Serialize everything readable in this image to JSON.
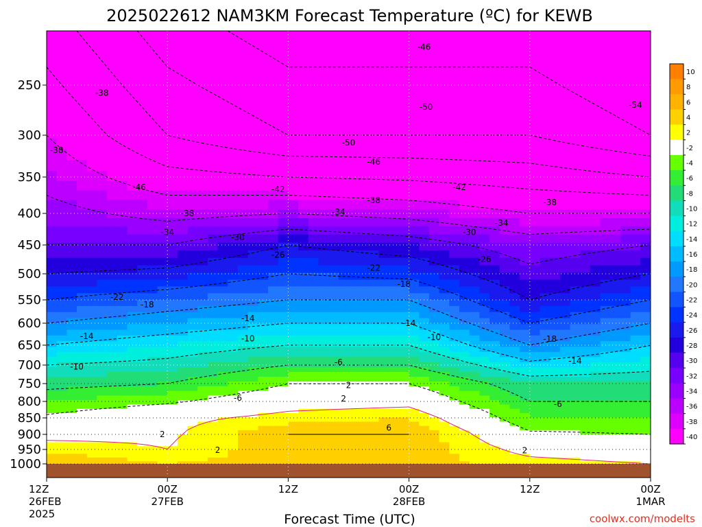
{
  "chart_data": {
    "type": "heatmap",
    "title": "2025022612 NAM3KM Forecast Temperature (ºC) for KEWB",
    "xlabel": "Forecast Time (UTC)",
    "ylabel": "",
    "x_tick_labels": [
      [
        "12Z",
        "26FEB",
        "2025"
      ],
      [
        "00Z",
        "27FEB"
      ],
      [
        "12Z"
      ],
      [
        "00Z",
        "28FEB"
      ],
      [
        "12Z"
      ],
      [
        "00Z",
        "1MAR"
      ]
    ],
    "x_tick_hours": [
      0,
      12,
      24,
      36,
      48,
      60
    ],
    "x_range_hours": [
      0,
      60
    ],
    "y_axis": "pressure (hPa), reversed, log-like",
    "y_ticks": [
      250,
      300,
      350,
      400,
      450,
      500,
      550,
      600,
      650,
      700,
      750,
      800,
      850,
      900,
      950,
      1000
    ],
    "y_range": [
      200,
      1000
    ],
    "grid": true,
    "legend_position": "right",
    "colorbar": {
      "labels": [
        "10",
        "8",
        "6",
        "4",
        "2",
        "-2",
        "-4",
        "-6",
        "-8",
        "-10",
        "-12",
        "-14",
        "-16",
        "-18",
        "-20",
        "-22",
        "-24",
        "-26",
        "-28",
        "-30",
        "-32",
        "-34",
        "-36",
        "-38",
        "-40"
      ],
      "colors": [
        "#ff8000",
        "#ff9a00",
        "#ffb300",
        "#ffd000",
        "#ffff00",
        "#ffffff",
        "#66ff00",
        "#33ee33",
        "#22dd77",
        "#11ddbb",
        "#00eedd",
        "#00ddff",
        "#00bbff",
        "#0099ff",
        "#2277ff",
        "#1155ff",
        "#0033ff",
        "#1a1aee",
        "#2200dd",
        "#5500ee",
        "#7700ff",
        "#9900ff",
        "#bb00ff",
        "#dd00ff",
        "#ff00ff"
      ]
    },
    "approx_profiles": [
      {
        "hour": 0,
        "levels": [
          {
            "p": 300,
            "t": -38
          },
          {
            "p": 450,
            "t": -30
          },
          {
            "p": 550,
            "t": -22
          },
          {
            "p": 650,
            "t": -14
          },
          {
            "p": 700,
            "t": -10
          },
          {
            "p": 800,
            "t": -4
          },
          {
            "p": 900,
            "t": 1
          },
          {
            "p": 1000,
            "t": 6
          }
        ]
      },
      {
        "hour": 12,
        "levels": [
          {
            "p": 300,
            "t": -46
          },
          {
            "p": 450,
            "t": -30
          },
          {
            "p": 550,
            "t": -20
          },
          {
            "p": 650,
            "t": -12
          },
          {
            "p": 750,
            "t": -6
          },
          {
            "p": 850,
            "t": 1
          },
          {
            "p": 950,
            "t": 2
          },
          {
            "p": 1000,
            "t": 4
          }
        ]
      },
      {
        "hour": 24,
        "levels": [
          {
            "p": 300,
            "t": -50
          },
          {
            "p": 450,
            "t": -26
          },
          {
            "p": 550,
            "t": -18
          },
          {
            "p": 650,
            "t": -10
          },
          {
            "p": 750,
            "t": -2
          },
          {
            "p": 850,
            "t": 3
          },
          {
            "p": 900,
            "t": 6
          },
          {
            "p": 1000,
            "t": 5
          }
        ]
      },
      {
        "hour": 36,
        "levels": [
          {
            "p": 300,
            "t": -50
          },
          {
            "p": 450,
            "t": -28
          },
          {
            "p": 550,
            "t": -18
          },
          {
            "p": 650,
            "t": -10
          },
          {
            "p": 750,
            "t": -2
          },
          {
            "p": 850,
            "t": 4
          },
          {
            "p": 900,
            "t": 6
          },
          {
            "p": 1000,
            "t": 5
          }
        ]
      },
      {
        "hour": 48,
        "levels": [
          {
            "p": 300,
            "t": -50
          },
          {
            "p": 450,
            "t": -32
          },
          {
            "p": 550,
            "t": -26
          },
          {
            "p": 650,
            "t": -18
          },
          {
            "p": 750,
            "t": -8
          },
          {
            "p": 850,
            "t": -4
          },
          {
            "p": 950,
            "t": 1
          },
          {
            "p": 1000,
            "t": 3
          }
        ]
      },
      {
        "hour": 60,
        "levels": [
          {
            "p": 300,
            "t": -54
          },
          {
            "p": 450,
            "t": -30
          },
          {
            "p": 550,
            "t": -22
          },
          {
            "p": 650,
            "t": -14
          },
          {
            "p": 750,
            "t": -8
          },
          {
            "p": 850,
            "t": -4
          },
          {
            "p": 950,
            "t": 0
          },
          {
            "p": 1000,
            "t": 2
          }
        ]
      }
    ],
    "contour_labels": [
      {
        "text": "-46",
        "hour": 37.5,
        "p": 215
      },
      {
        "text": "-38",
        "hour": 5.5,
        "p": 258
      },
      {
        "text": "-50",
        "hour": 37.7,
        "p": 272
      },
      {
        "text": "-54",
        "hour": 58.5,
        "p": 270
      },
      {
        "text": "-38",
        "hour": 1.0,
        "p": 318
      },
      {
        "text": "-50",
        "hour": 30.0,
        "p": 309
      },
      {
        "text": "-46",
        "hour": 32.5,
        "p": 332
      },
      {
        "text": "-46",
        "hour": 9.2,
        "p": 364
      },
      {
        "text": "-42",
        "hour": 23.0,
        "p": 367
      },
      {
        "text": "-42",
        "hour": 41.0,
        "p": 364
      },
      {
        "text": "-38",
        "hour": 32.5,
        "p": 382
      },
      {
        "text": "-38",
        "hour": 50.0,
        "p": 385
      },
      {
        "text": "-38",
        "hour": 14.0,
        "p": 400
      },
      {
        "text": "-34",
        "hour": 29.0,
        "p": 398
      },
      {
        "text": "-34",
        "hour": 45.2,
        "p": 415
      },
      {
        "text": "-34",
        "hour": 12.0,
        "p": 430
      },
      {
        "text": "-30",
        "hour": 19.0,
        "p": 438
      },
      {
        "text": "-30",
        "hour": 42.0,
        "p": 430
      },
      {
        "text": "-26",
        "hour": 23.0,
        "p": 467
      },
      {
        "text": "-26",
        "hour": 43.5,
        "p": 475
      },
      {
        "text": "-22",
        "hour": 32.5,
        "p": 490
      },
      {
        "text": "-18",
        "hour": 35.5,
        "p": 520
      },
      {
        "text": "-22",
        "hour": 7.0,
        "p": 545
      },
      {
        "text": "-18",
        "hour": 10.0,
        "p": 560
      },
      {
        "text": "-14",
        "hour": 20.0,
        "p": 590
      },
      {
        "text": "-14",
        "hour": 36.0,
        "p": 600
      },
      {
        "text": "-14",
        "hour": 4.0,
        "p": 630
      },
      {
        "text": "-10",
        "hour": 20.0,
        "p": 635
      },
      {
        "text": "-10",
        "hour": 38.5,
        "p": 632
      },
      {
        "text": "-18",
        "hour": 50.0,
        "p": 636
      },
      {
        "text": "-14",
        "hour": 52.5,
        "p": 690
      },
      {
        "text": "-10",
        "hour": 3.0,
        "p": 705
      },
      {
        "text": "-6",
        "hour": 29.0,
        "p": 693
      },
      {
        "text": "2",
        "hour": 30.0,
        "p": 755
      },
      {
        "text": "-6",
        "hour": 19.0,
        "p": 790
      },
      {
        "text": "2",
        "hour": 29.5,
        "p": 792
      },
      {
        "text": "-6",
        "hour": 50.8,
        "p": 808
      },
      {
        "text": "6",
        "hour": 34.0,
        "p": 880
      },
      {
        "text": "2",
        "hour": 11.5,
        "p": 900
      },
      {
        "text": "2",
        "hour": 17.0,
        "p": 952
      },
      {
        "text": "2",
        "hour": 47.5,
        "p": 953
      }
    ]
  },
  "credit": "coolwx.com/modelts"
}
